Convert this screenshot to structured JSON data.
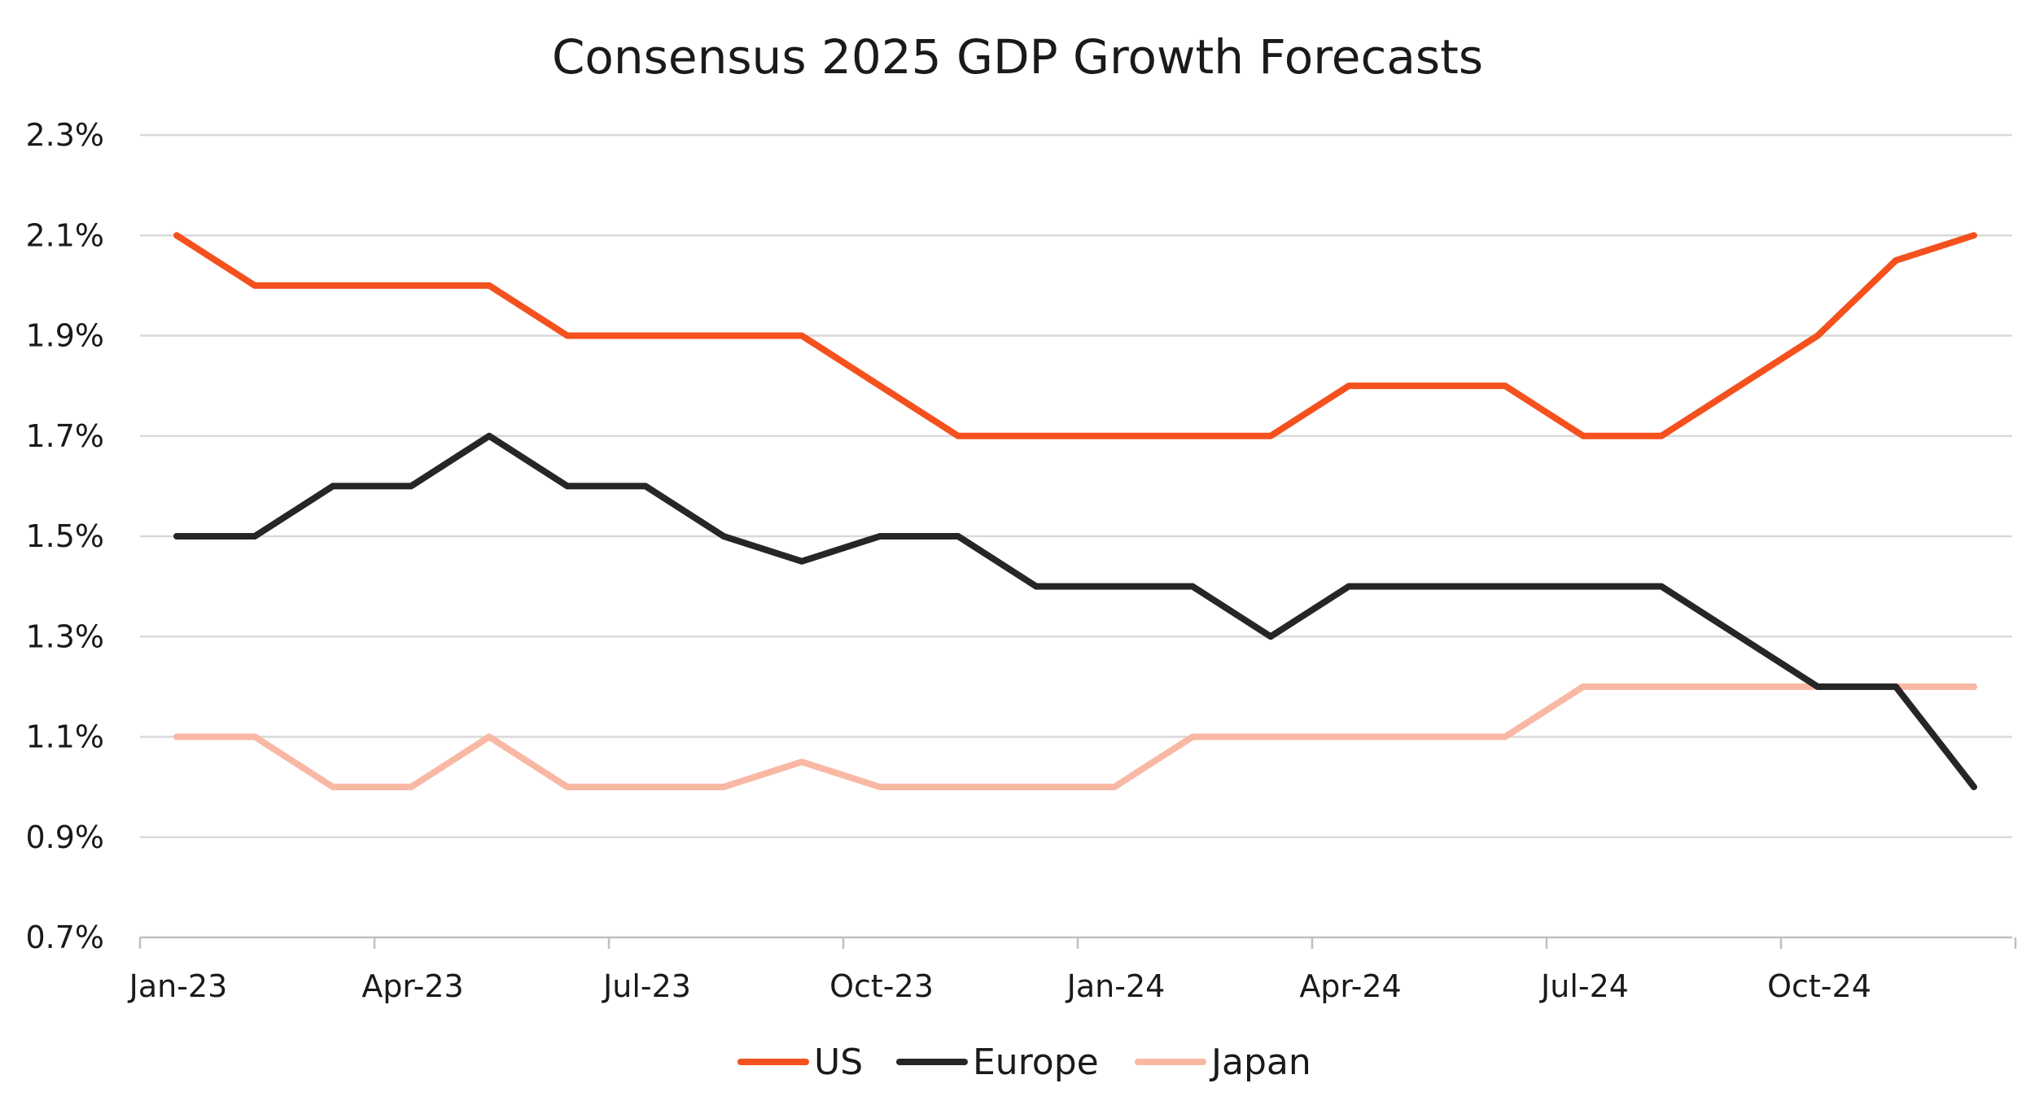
{
  "chart_data": {
    "type": "line",
    "title": "Consensus 2025 GDP Growth Forecasts",
    "xlabel": "",
    "ylabel": "",
    "ylim": [
      0.7,
      2.3
    ],
    "y_ticks": [
      "0.7%",
      "0.9%",
      "1.1%",
      "1.3%",
      "1.5%",
      "1.7%",
      "1.9%",
      "2.1%",
      "2.3%"
    ],
    "y_tick_values": [
      0.7,
      0.9,
      1.1,
      1.3,
      1.5,
      1.7,
      1.9,
      2.1,
      2.3
    ],
    "x": [
      "Jan-23",
      "Feb-23",
      "Mar-23",
      "Apr-23",
      "May-23",
      "Jun-23",
      "Jul-23",
      "Aug-23",
      "Sep-23",
      "Oct-23",
      "Nov-23",
      "Dec-23",
      "Jan-24",
      "Feb-24",
      "Mar-24",
      "Apr-24",
      "May-24",
      "Jun-24",
      "Jul-24",
      "Aug-24",
      "Sep-24",
      "Oct-24",
      "Nov-24",
      "Dec-24"
    ],
    "x_tick_labels": [
      "Jan-23",
      "Apr-23",
      "Jul-23",
      "Oct-23",
      "Jan-24",
      "Apr-24",
      "Jul-24",
      "Oct-24"
    ],
    "grid": true,
    "legend_position": "bottom-center",
    "series": [
      {
        "name": "US",
        "color": "#F4511E",
        "values": [
          2.1,
          2.0,
          2.0,
          2.0,
          2.0,
          1.9,
          1.9,
          1.9,
          1.9,
          1.8,
          1.7,
          1.7,
          1.7,
          1.7,
          1.7,
          1.8,
          1.8,
          1.8,
          1.7,
          1.7,
          1.8,
          1.9,
          2.05,
          2.1
        ]
      },
      {
        "name": "Europe",
        "color": "#262626",
        "values": [
          1.5,
          1.5,
          1.6,
          1.6,
          1.7,
          1.6,
          1.6,
          1.5,
          1.45,
          1.5,
          1.5,
          1.4,
          1.4,
          1.4,
          1.3,
          1.4,
          1.4,
          1.4,
          1.4,
          1.4,
          1.3,
          1.2,
          1.2,
          1.0
        ]
      },
      {
        "name": "Japan",
        "color": "#F8B8A4",
        "values": [
          1.1,
          1.1,
          1.0,
          1.0,
          1.1,
          1.0,
          1.0,
          1.0,
          1.05,
          1.0,
          1.0,
          1.0,
          1.0,
          1.1,
          1.1,
          1.1,
          1.1,
          1.1,
          1.2,
          1.2,
          1.2,
          1.2,
          1.2,
          1.2
        ]
      }
    ]
  }
}
